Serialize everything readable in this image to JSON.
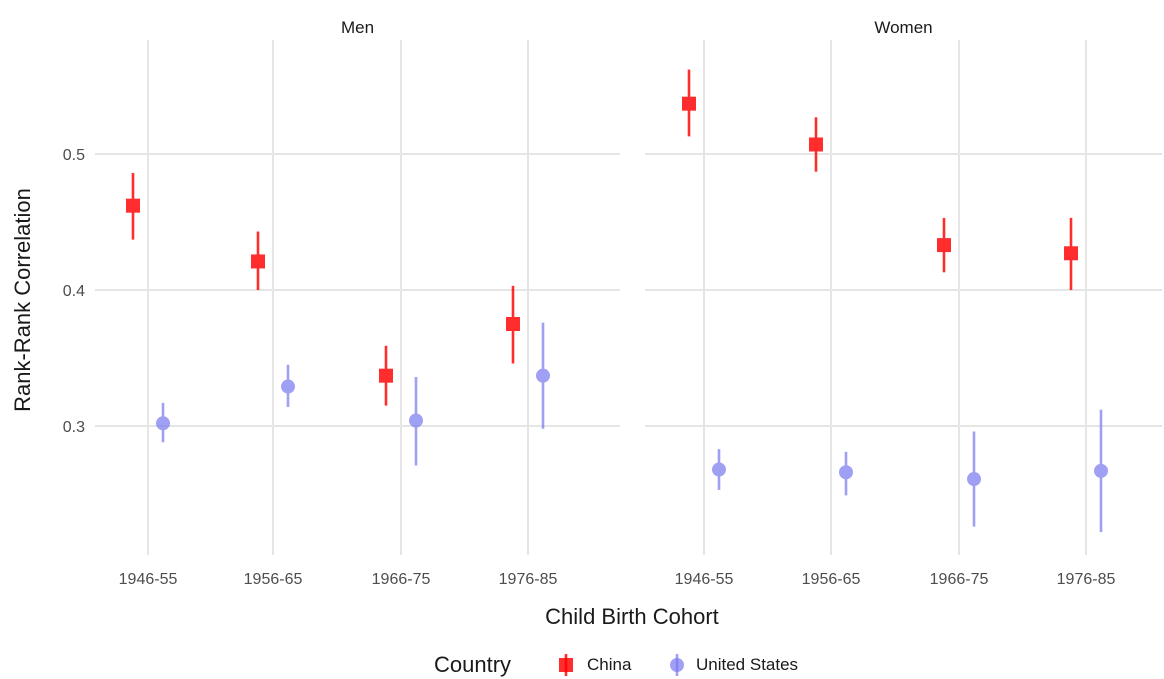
{
  "chart_data": {
    "type": "scatter",
    "xlabel": "Child Birth Cohort",
    "ylabel": "Rank-Rank Correlation",
    "categories": [
      "1946-55",
      "1956-65",
      "1966-75",
      "1976-85"
    ],
    "yticks": [
      "0.3",
      "0.4",
      "0.5"
    ],
    "ytick_values": [
      0.3,
      0.4,
      0.5
    ],
    "ylim": [
      0.2,
      0.57
    ],
    "grid": true,
    "legend": {
      "title": "Country",
      "position": "bottom",
      "entries": [
        {
          "name": "China",
          "color": "#ff0000",
          "shape": "square"
        },
        {
          "name": "United States",
          "color": "#7b7bf0",
          "shape": "circle"
        }
      ]
    },
    "panels": [
      {
        "title": "Men",
        "series": [
          {
            "name": "China",
            "values": [
              0.462,
              0.421,
              0.337,
              0.375
            ],
            "lower": [
              0.437,
              0.4,
              0.315,
              0.346
            ],
            "upper": [
              0.486,
              0.443,
              0.359,
              0.403
            ]
          },
          {
            "name": "United States",
            "values": [
              0.302,
              0.329,
              0.304,
              0.337
            ],
            "lower": [
              0.288,
              0.314,
              0.271,
              0.298
            ],
            "upper": [
              0.317,
              0.345,
              0.336,
              0.376
            ]
          }
        ]
      },
      {
        "title": "Women",
        "series": [
          {
            "name": "China",
            "values": [
              0.537,
              0.507,
              0.433,
              0.427
            ],
            "lower": [
              0.513,
              0.487,
              0.413,
              0.4
            ],
            "upper": [
              0.562,
              0.527,
              0.453,
              0.453
            ]
          },
          {
            "name": "United States",
            "values": [
              0.268,
              0.266,
              0.261,
              0.267
            ],
            "lower": [
              0.253,
              0.249,
              0.226,
              0.222
            ],
            "upper": [
              0.283,
              0.281,
              0.296,
              0.312
            ]
          }
        ]
      }
    ]
  }
}
